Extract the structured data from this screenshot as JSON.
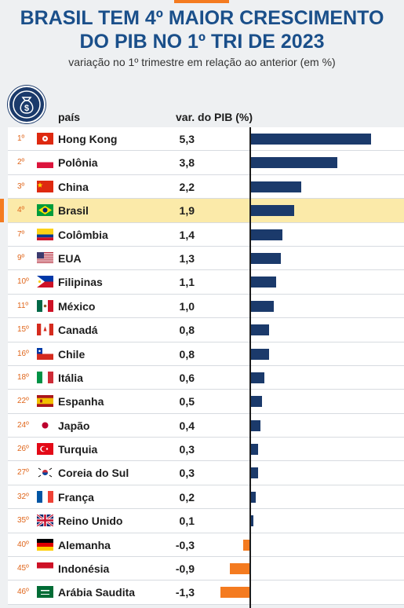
{
  "title_line1": "BRASIL TEM 4º MAIOR CRESCIMENTO",
  "title_line2": "DO PIB NO 1º TRI DE 2023",
  "subtitle": "variação no 1º trimestre em relação ao anterior (em %)",
  "col_country": "país",
  "col_value": "var. do PIB (%)",
  "icon": "money-bag-icon",
  "colors": {
    "positive": "#1b3a6b",
    "negative": "#f47b20",
    "highlight": "#fbeaa9",
    "rank": "#e0661b"
  },
  "chart_data": {
    "type": "bar",
    "orientation": "horizontal",
    "highlight": "Brasil",
    "rows": [
      {
        "rank": "1º",
        "country": "Hong Kong",
        "label": "5,3",
        "value": 5.3,
        "flag": "hk"
      },
      {
        "rank": "2º",
        "country": "Polônia",
        "label": "3,8",
        "value": 3.8,
        "flag": "pl"
      },
      {
        "rank": "3º",
        "country": "China",
        "label": "2,2",
        "value": 2.2,
        "flag": "cn"
      },
      {
        "rank": "4º",
        "country": "Brasil",
        "label": "1,9",
        "value": 1.9,
        "flag": "br"
      },
      {
        "rank": "7º",
        "country": "Colômbia",
        "label": "1,4",
        "value": 1.4,
        "flag": "co"
      },
      {
        "rank": "9º",
        "country": "EUA",
        "label": "1,3",
        "value": 1.3,
        "flag": "us"
      },
      {
        "rank": "10º",
        "country": "Filipinas",
        "label": "1,1",
        "value": 1.1,
        "flag": "ph"
      },
      {
        "rank": "11º",
        "country": "México",
        "label": "1,0",
        "value": 1.0,
        "flag": "mx"
      },
      {
        "rank": "15º",
        "country": "Canadá",
        "label": "0,8",
        "value": 0.8,
        "flag": "ca"
      },
      {
        "rank": "16º",
        "country": "Chile",
        "label": "0,8",
        "value": 0.8,
        "flag": "cl"
      },
      {
        "rank": "18º",
        "country": "Itália",
        "label": "0,6",
        "value": 0.6,
        "flag": "it"
      },
      {
        "rank": "22º",
        "country": "Espanha",
        "label": "0,5",
        "value": 0.5,
        "flag": "es"
      },
      {
        "rank": "24º",
        "country": "Japão",
        "label": "0,4",
        "value": 0.4,
        "flag": "jp"
      },
      {
        "rank": "26º",
        "country": "Turquia",
        "label": "0,3",
        "value": 0.3,
        "flag": "tr"
      },
      {
        "rank": "27º",
        "country": "Coreia do Sul",
        "label": "0,3",
        "value": 0.3,
        "flag": "kr"
      },
      {
        "rank": "32º",
        "country": "França",
        "label": "0,2",
        "value": 0.2,
        "flag": "fr"
      },
      {
        "rank": "35º",
        "country": "Reino Unido",
        "label": "0,1",
        "value": 0.1,
        "flag": "gb"
      },
      {
        "rank": "40º",
        "country": "Alemanha",
        "label": "-0,3",
        "value": -0.3,
        "flag": "de"
      },
      {
        "rank": "45º",
        "country": "Indonésia",
        "label": "-0,9",
        "value": -0.9,
        "flag": "id"
      },
      {
        "rank": "46º",
        "country": "Arábia Saudita",
        "label": "-1,3",
        "value": -1.3,
        "flag": "sa"
      }
    ]
  }
}
